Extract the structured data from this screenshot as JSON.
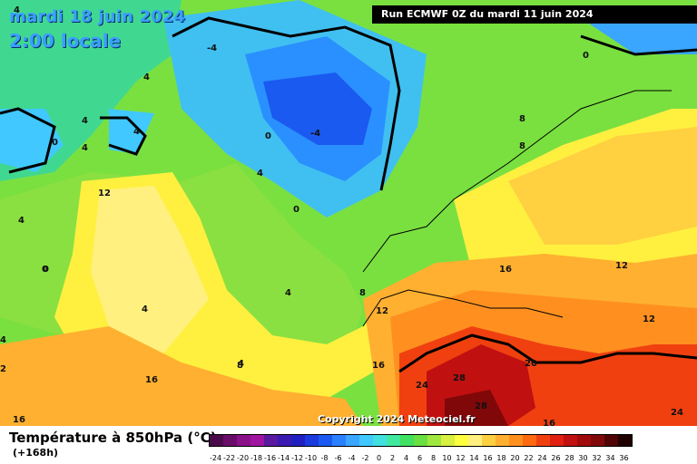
{
  "header": {
    "date_label": "mardi 18 juin 2024",
    "time_label": "2:00 locale",
    "run_label": "Run ECMWF 0Z du mardi 11 juin 2024"
  },
  "map": {
    "copyright": "Copyright 2024 Meteociel.fr",
    "contour_labels": [
      "4",
      "4",
      "-4",
      "4",
      "0",
      "4",
      "4",
      "4",
      "-4",
      "0",
      "4",
      "8",
      "8",
      "4",
      "0",
      "0",
      "12",
      "4",
      "4",
      "0",
      "16",
      "12",
      "12",
      "8",
      "12",
      "8",
      "16",
      "16",
      "20",
      "24",
      "28",
      "28",
      "24",
      "16",
      "16",
      "0",
      "2",
      "4"
    ]
  },
  "footer": {
    "parameter_title": "Température à 850hPa (°C)",
    "forecast_hour": "(+168h)"
  },
  "legend": {
    "labels": [
      "-24",
      "-22",
      "-20",
      "-18",
      "-16",
      "-14",
      "-12",
      "-10",
      "-8",
      "-6",
      "-4",
      "-2",
      "0",
      "2",
      "4",
      "6",
      "8",
      "10",
      "12",
      "14",
      "16",
      "18",
      "20",
      "22",
      "24",
      "26",
      "28",
      "30",
      "32",
      "34",
      "36"
    ],
    "colors": [
      "#4a0a4a",
      "#6a0d6a",
      "#8a118a",
      "#a015a0",
      "#5a1aa0",
      "#3a1ab0",
      "#2020c0",
      "#1a3ae0",
      "#1a5af0",
      "#2a80ff",
      "#3aa6ff",
      "#40c8ff",
      "#40e0e0",
      "#40e8a0",
      "#40e060",
      "#6ae040",
      "#a0e840",
      "#d8f040",
      "#ffff40",
      "#fff080",
      "#ffd040",
      "#ffb030",
      "#ff9020",
      "#ff6a10",
      "#f04010",
      "#e02010",
      "#c01010",
      "#a00a0a",
      "#800808",
      "#500404",
      "#200000"
    ],
    "accent_colors": {
      "cold": "#3a6cf0",
      "warm": "#e02010"
    }
  }
}
